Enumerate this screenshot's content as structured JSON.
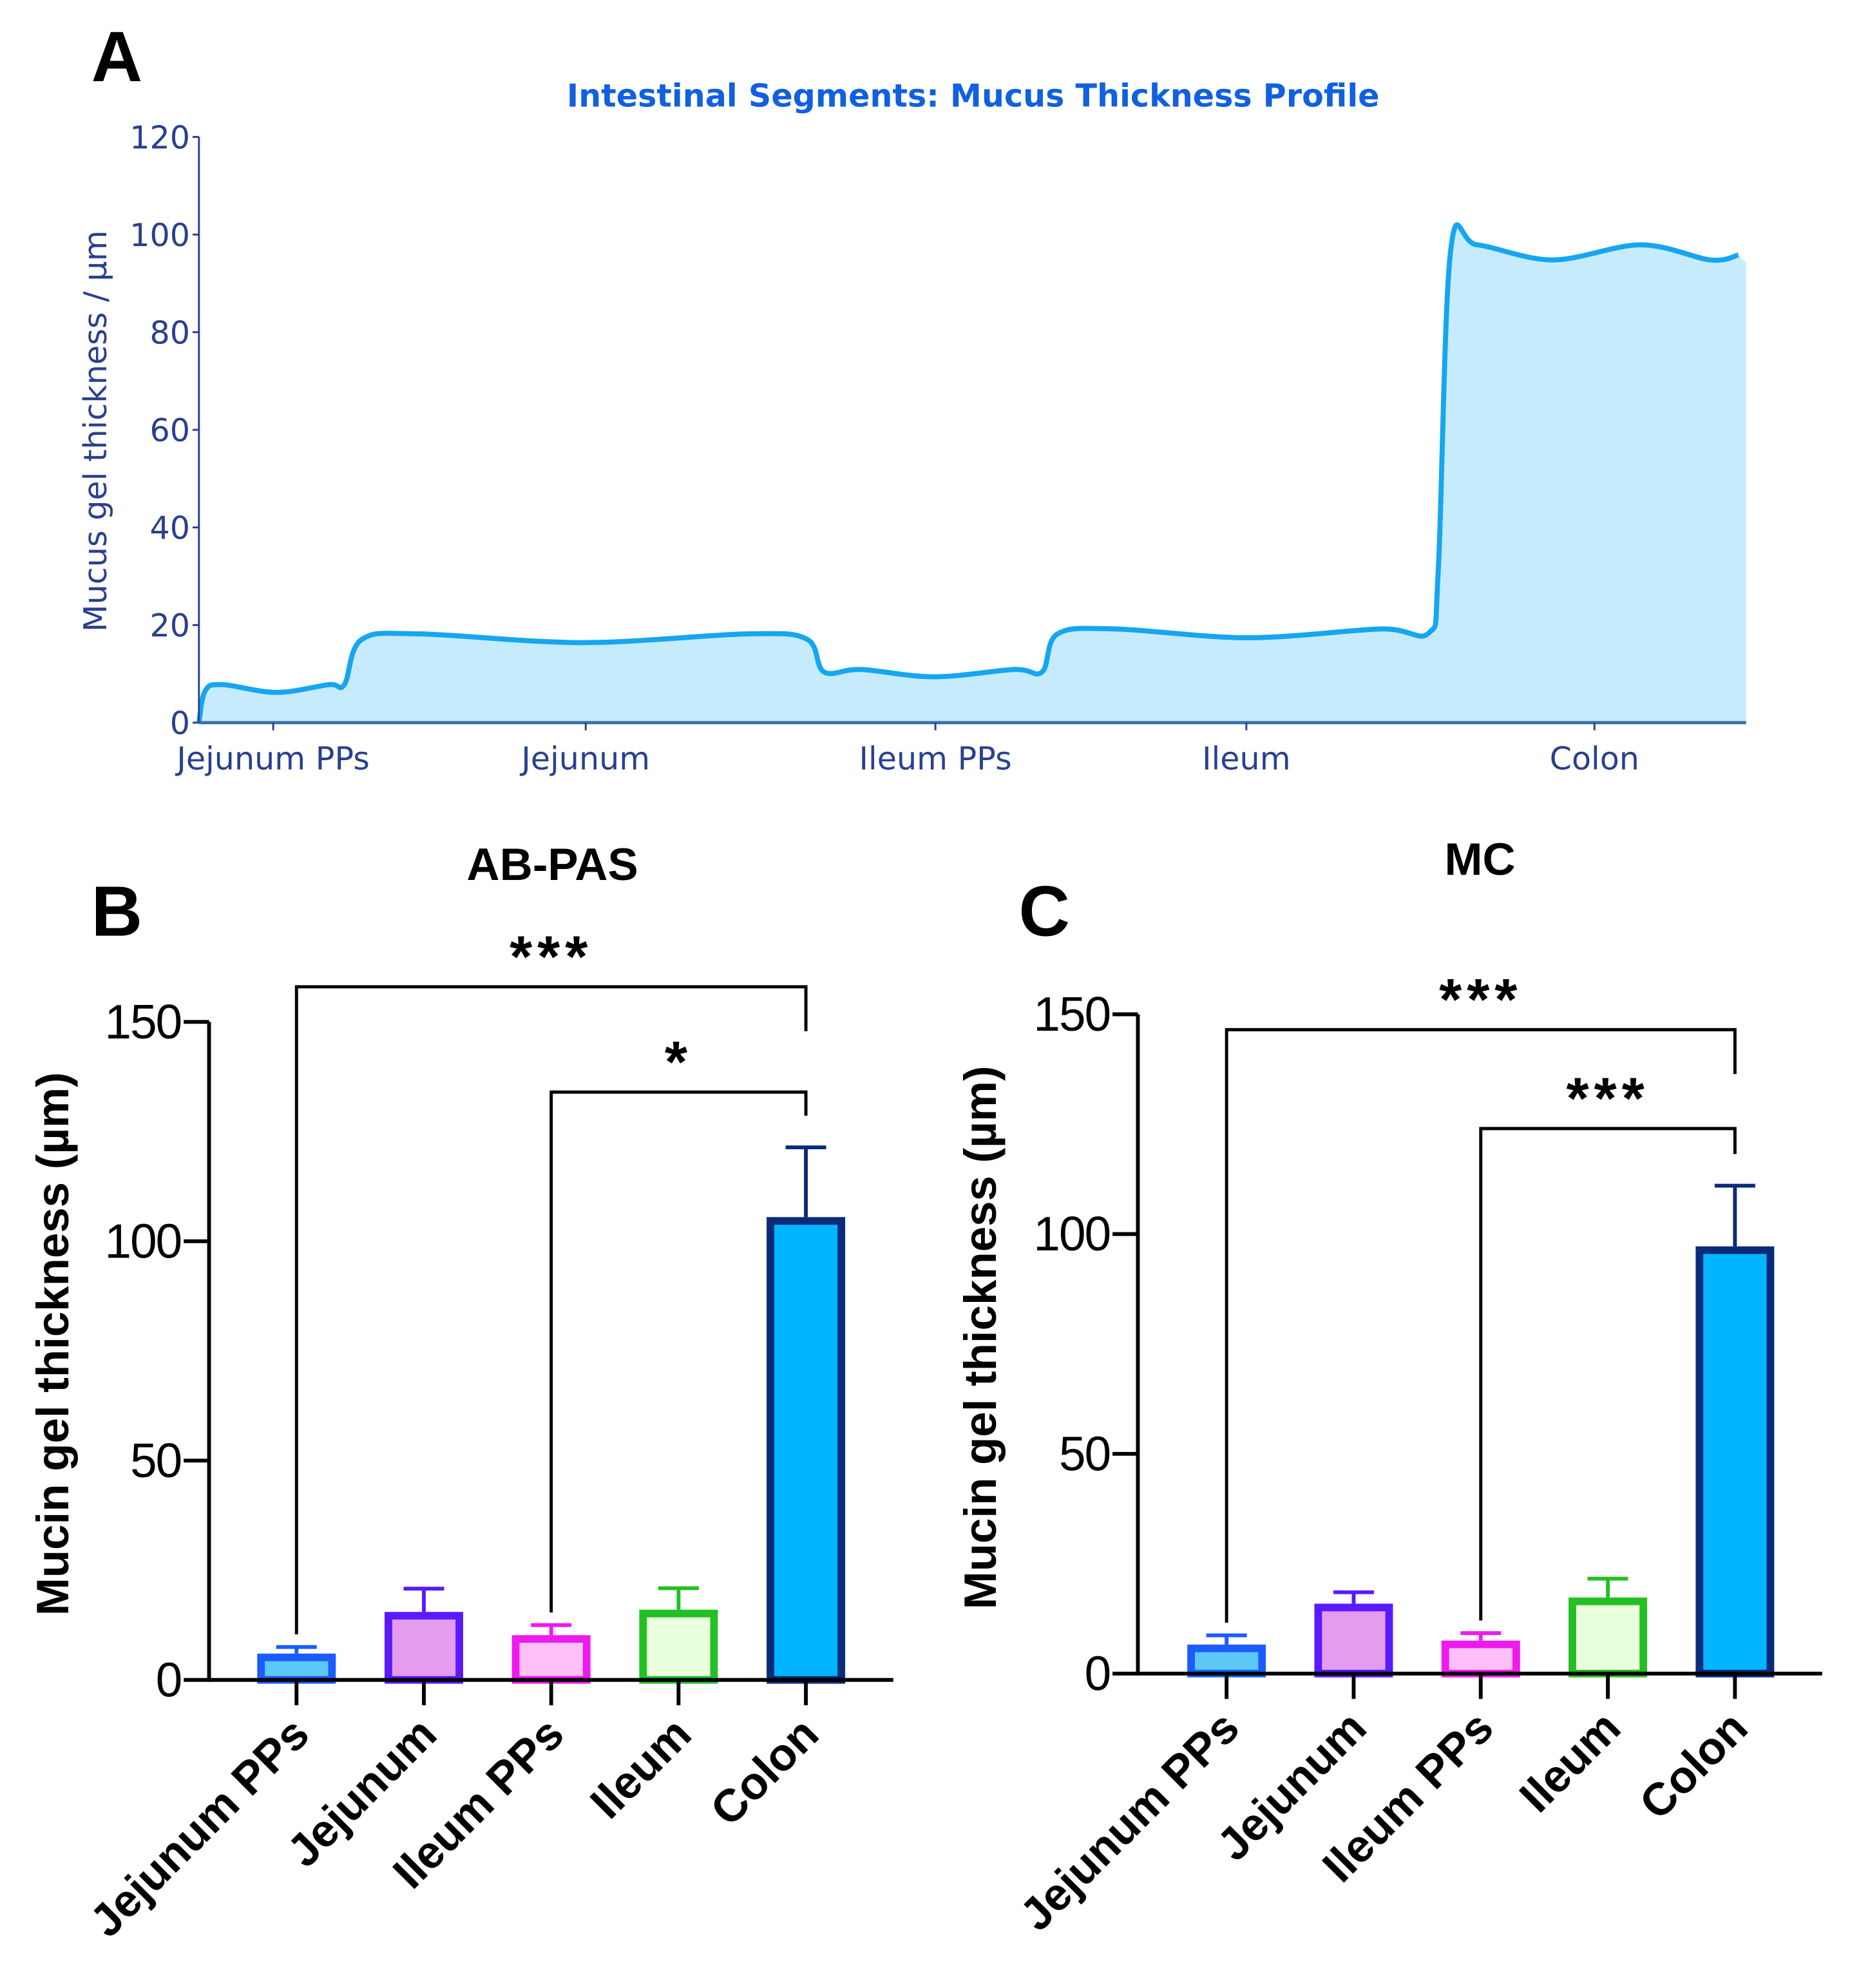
{
  "panel_labels": [
    "A",
    "B",
    "C"
  ],
  "colors": {
    "profile_line": "#16a6f0",
    "profile_fill": "#c6ebfc",
    "axis_a": "#2a3f8f",
    "title_a": "#1060e0",
    "bar_borders": [
      "#1a5cff",
      "#5a1aff",
      "#ee1aee",
      "#22c022",
      "#0a2a7a"
    ],
    "bar_fills": [
      "#5bc8f5",
      "#e49cf0",
      "#ffc0f8",
      "#eaffdc",
      "#00b4ff"
    ]
  },
  "chart_data": [
    {
      "type": "area",
      "title": "Intestinal Segments: Mucus Thickness Profile",
      "xlabel": "",
      "ylabel": "Mucus gel thickness / µm",
      "ylim": [
        0,
        120
      ],
      "yticks": [
        0,
        20,
        40,
        60,
        80,
        100,
        120
      ],
      "xlim": [
        0,
        100
      ],
      "categories": [
        "Jejunum PPs",
        "Jejunum",
        "Ileum PPs",
        "Ileum",
        "Colon"
      ],
      "category_positions": [
        4.8,
        25,
        47.6,
        67.7,
        90.2
      ],
      "x": [
        0,
        0.4,
        1.5,
        5.0,
        8.4,
        9.4,
        10.5,
        14.2,
        24.8,
        35.5,
        39.3,
        40.4,
        42.8,
        47.5,
        52.7,
        54.5,
        55.5,
        59.2,
        67.8,
        76.4,
        79.5,
        80.1,
        80.9,
        82.6,
        87.5,
        93.2,
        97.7,
        99.5
      ],
      "y": [
        0,
        6.5,
        7.8,
        6.2,
        7.8,
        7.8,
        17,
        18.2,
        16.4,
        18.2,
        17.1,
        10.4,
        10.9,
        9.4,
        10.9,
        10.4,
        18.2,
        19.2,
        17.4,
        19.2,
        18.4,
        31,
        96.6,
        97.9,
        94.8,
        97.9,
        94.8,
        95.8
      ],
      "grid": false
    },
    {
      "type": "bar",
      "title": "AB-PAS",
      "ylabel": "Mucin gel thickness (µm)",
      "ylim": [
        0,
        150
      ],
      "yticks": [
        0,
        50,
        100,
        150
      ],
      "categories": [
        "Jejunum PPs",
        "Jejunum",
        "Ileum PPs",
        "Ileum",
        "Colon"
      ],
      "values": [
        6,
        15.5,
        10.2,
        16,
        105.5
      ],
      "errors": [
        1.5,
        5.3,
        2.3,
        4.9,
        15.9
      ],
      "significance": [
        {
          "from": 0,
          "to": 4,
          "label": "***",
          "level": 158
        },
        {
          "from": 2,
          "to": 4,
          "label": "*",
          "level": 134
        }
      ]
    },
    {
      "type": "bar",
      "title": "MC",
      "ylabel": "Mucin gel thickness (µm)",
      "ylim": [
        0,
        150
      ],
      "yticks": [
        0,
        50,
        100,
        150
      ],
      "categories": [
        "Jejunum PPs",
        "Jejunum",
        "Ileum PPs",
        "Ileum",
        "Colon"
      ],
      "values": [
        6.6,
        15.9,
        7.5,
        17.3,
        97.2
      ],
      "errors": [
        2.1,
        2.6,
        1.7,
        4.3,
        13.8
      ],
      "significance": [
        {
          "from": 0,
          "to": 4,
          "label": "***",
          "level": 146.5
        },
        {
          "from": 2,
          "to": 4,
          "label": "***",
          "level": 124
        }
      ]
    }
  ]
}
